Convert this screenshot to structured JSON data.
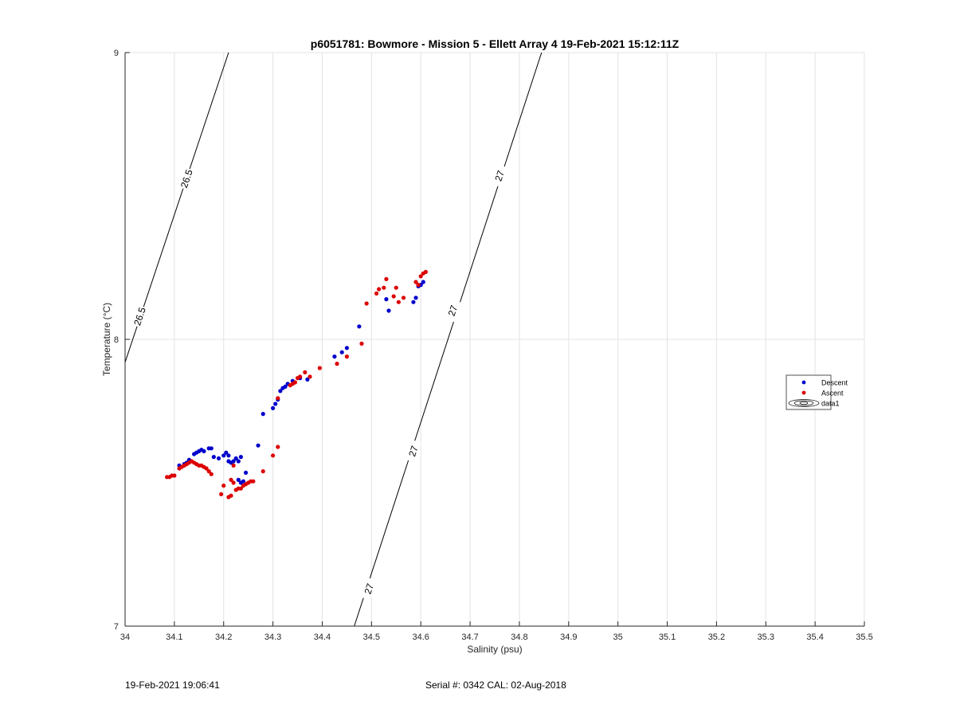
{
  "chart_data": {
    "type": "scatter",
    "title": "p6051781: Bowmore - Mission 5 - Ellett Array 4 19-Feb-2021 15:12:11Z",
    "xlabel": "Salinity (psu)",
    "ylabel": "Temperature (°C)",
    "xlim": [
      34,
      35.5
    ],
    "ylim": [
      7,
      9
    ],
    "x_ticks": [
      "34",
      "34.1",
      "34.2",
      "34.3",
      "34.4",
      "34.5",
      "34.6",
      "34.7",
      "34.8",
      "34.9",
      "35",
      "35.1",
      "35.2",
      "35.3",
      "35.4",
      "35.5"
    ],
    "y_ticks": [
      "7",
      "8",
      "9"
    ],
    "grid": true,
    "legend_position": "right",
    "legend": [
      {
        "label": "Descent",
        "color": "#0000cc",
        "marker": "dot"
      },
      {
        "label": "Ascent",
        "color": "#dd0000",
        "marker": "dot"
      },
      {
        "label": "data1",
        "marker": "contour"
      }
    ],
    "contours": [
      {
        "label": "26.5",
        "points": [
          [
            34.0,
            7.92
          ],
          [
            34.21,
            9.0
          ]
        ],
        "label_positions": [
          [
            34.03,
            8.08
          ],
          [
            34.125,
            8.56
          ]
        ]
      },
      {
        "label": "27",
        "points": [
          [
            34.465,
            7.0
          ],
          [
            34.845,
            9.0
          ]
        ],
        "label_positions": [
          [
            34.495,
            7.13
          ],
          [
            34.585,
            7.61
          ],
          [
            34.665,
            8.1
          ],
          [
            34.76,
            8.57
          ]
        ]
      }
    ],
    "series": [
      {
        "name": "Descent",
        "color": "#0000cc",
        "points": [
          [
            34.11,
            7.56
          ],
          [
            34.12,
            7.565
          ],
          [
            34.125,
            7.57
          ],
          [
            34.13,
            7.58
          ],
          [
            34.14,
            7.6
          ],
          [
            34.145,
            7.605
          ],
          [
            34.15,
            7.61
          ],
          [
            34.155,
            7.615
          ],
          [
            34.16,
            7.61
          ],
          [
            34.17,
            7.62
          ],
          [
            34.175,
            7.62
          ],
          [
            34.18,
            7.59
          ],
          [
            34.19,
            7.585
          ],
          [
            34.2,
            7.595
          ],
          [
            34.205,
            7.605
          ],
          [
            34.21,
            7.595
          ],
          [
            34.21,
            7.575
          ],
          [
            34.215,
            7.57
          ],
          [
            34.22,
            7.575
          ],
          [
            34.225,
            7.585
          ],
          [
            34.23,
            7.575
          ],
          [
            34.235,
            7.59
          ],
          [
            34.23,
            7.51
          ],
          [
            34.235,
            7.5
          ],
          [
            34.24,
            7.505
          ],
          [
            34.245,
            7.535
          ],
          [
            34.27,
            7.63
          ],
          [
            34.28,
            7.74
          ],
          [
            34.3,
            7.76
          ],
          [
            34.305,
            7.775
          ],
          [
            34.31,
            7.79
          ],
          [
            34.315,
            7.82
          ],
          [
            34.32,
            7.83
          ],
          [
            34.325,
            7.835
          ],
          [
            34.33,
            7.845
          ],
          [
            34.34,
            7.855
          ],
          [
            34.355,
            7.865
          ],
          [
            34.37,
            7.86
          ],
          [
            34.425,
            7.94
          ],
          [
            34.44,
            7.955
          ],
          [
            34.45,
            7.97
          ],
          [
            34.475,
            8.045
          ],
          [
            34.53,
            8.14
          ],
          [
            34.535,
            8.1
          ],
          [
            34.585,
            8.13
          ],
          [
            34.59,
            8.145
          ],
          [
            34.595,
            8.185
          ],
          [
            34.6,
            8.19
          ],
          [
            34.605,
            8.2
          ]
        ]
      },
      {
        "name": "Ascent",
        "color": "#dd0000",
        "points": [
          [
            34.085,
            7.52
          ],
          [
            34.09,
            7.52
          ],
          [
            34.095,
            7.525
          ],
          [
            34.1,
            7.525
          ],
          [
            34.11,
            7.55
          ],
          [
            34.115,
            7.555
          ],
          [
            34.12,
            7.56
          ],
          [
            34.125,
            7.565
          ],
          [
            34.13,
            7.57
          ],
          [
            34.135,
            7.575
          ],
          [
            34.14,
            7.57
          ],
          [
            34.145,
            7.565
          ],
          [
            34.15,
            7.56
          ],
          [
            34.155,
            7.56
          ],
          [
            34.16,
            7.555
          ],
          [
            34.165,
            7.55
          ],
          [
            34.17,
            7.54
          ],
          [
            34.175,
            7.53
          ],
          [
            34.195,
            7.46
          ],
          [
            34.2,
            7.49
          ],
          [
            34.21,
            7.45
          ],
          [
            34.215,
            7.455
          ],
          [
            34.215,
            7.51
          ],
          [
            34.22,
            7.5
          ],
          [
            34.22,
            7.56
          ],
          [
            34.225,
            7.475
          ],
          [
            34.23,
            7.48
          ],
          [
            34.235,
            7.48
          ],
          [
            34.24,
            7.49
          ],
          [
            34.245,
            7.495
          ],
          [
            34.25,
            7.5
          ],
          [
            34.255,
            7.505
          ],
          [
            34.26,
            7.505
          ],
          [
            34.28,
            7.54
          ],
          [
            34.3,
            7.595
          ],
          [
            34.31,
            7.625
          ],
          [
            34.31,
            7.795
          ],
          [
            34.335,
            7.84
          ],
          [
            34.34,
            7.845
          ],
          [
            34.345,
            7.85
          ],
          [
            34.35,
            7.865
          ],
          [
            34.355,
            7.87
          ],
          [
            34.365,
            7.885
          ],
          [
            34.375,
            7.87
          ],
          [
            34.395,
            7.9
          ],
          [
            34.43,
            7.915
          ],
          [
            34.45,
            7.94
          ],
          [
            34.48,
            7.985
          ],
          [
            34.49,
            8.125
          ],
          [
            34.51,
            8.16
          ],
          [
            34.515,
            8.175
          ],
          [
            34.525,
            8.18
          ],
          [
            34.53,
            8.21
          ],
          [
            34.545,
            8.15
          ],
          [
            34.55,
            8.18
          ],
          [
            34.555,
            8.13
          ],
          [
            34.565,
            8.145
          ],
          [
            34.59,
            8.2
          ],
          [
            34.595,
            8.19
          ],
          [
            34.6,
            8.22
          ],
          [
            34.605,
            8.23
          ],
          [
            34.61,
            8.235
          ]
        ]
      }
    ]
  },
  "footer": {
    "timestamp": "19-Feb-2021 19:06:41",
    "serial_cal": "Serial #: 0342  CAL: 02-Aug-2018"
  }
}
